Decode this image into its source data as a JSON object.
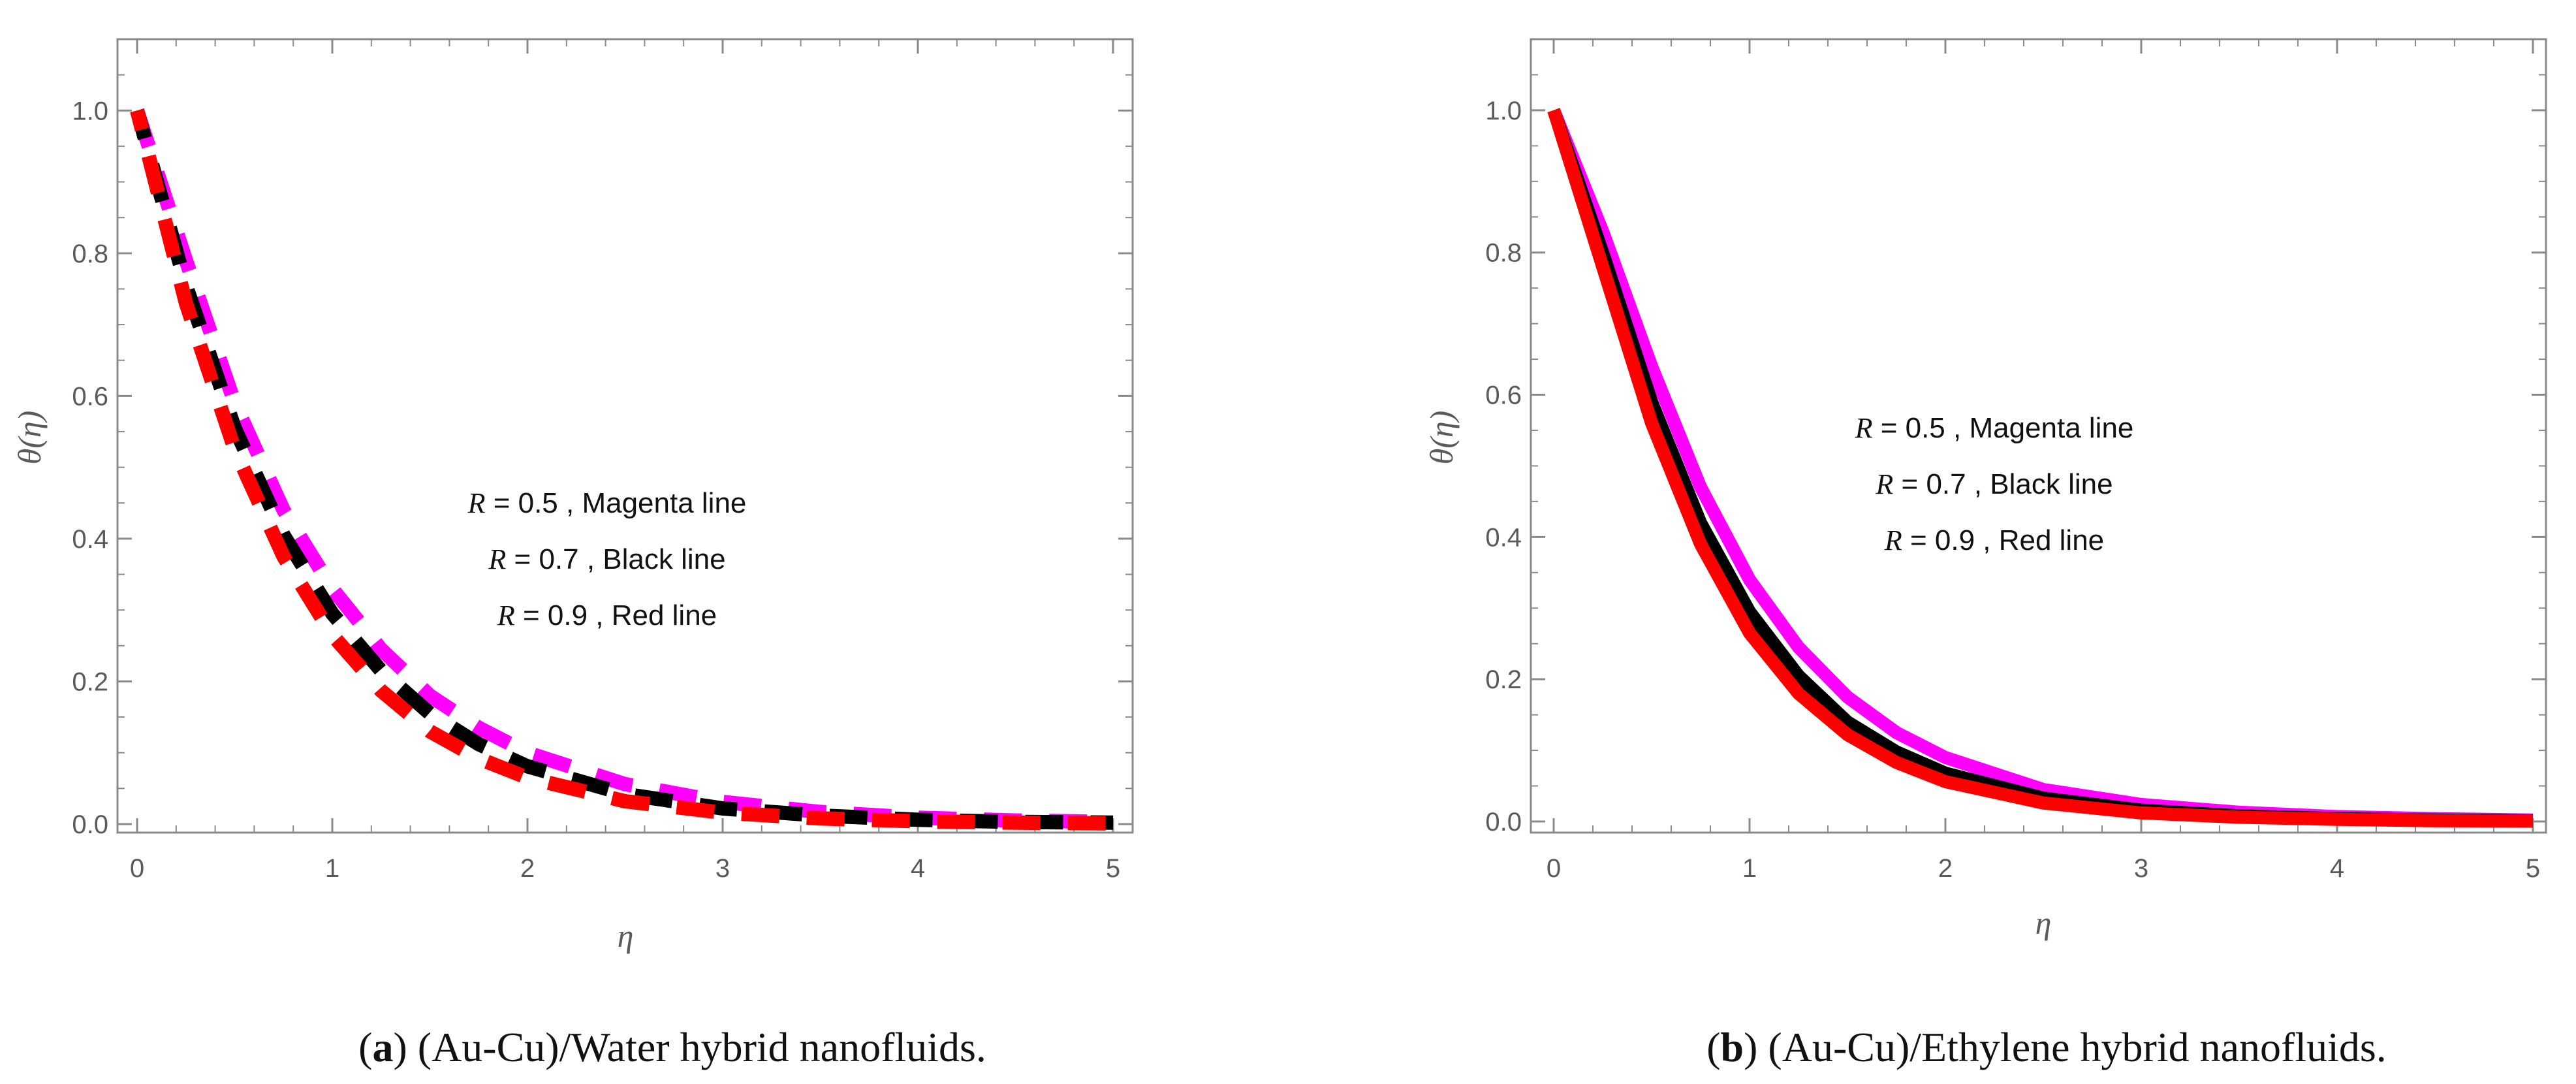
{
  "colors": {
    "magenta": "#ff00ff",
    "black": "#000000",
    "red": "#ff0000",
    "frame": "#8a8a8a"
  },
  "chart_data": [
    {
      "id": "a",
      "type": "line",
      "style": "dashed",
      "xlabel": "η",
      "ylabel": "θ(η)",
      "xlim": [
        0,
        5
      ],
      "ylim": [
        0,
        1.1
      ],
      "xticks": [
        0,
        1,
        2,
        3,
        4,
        5
      ],
      "yticks": [
        0.0,
        0.2,
        0.4,
        0.6,
        0.8,
        1.0
      ],
      "xtick_labels": [
        "0",
        "1",
        "2",
        "3",
        "4",
        "5"
      ],
      "ytick_labels": [
        "0.0",
        "0.2",
        "0.4",
        "0.6",
        "0.8",
        "1.0"
      ],
      "x": [
        0,
        0.25,
        0.5,
        0.75,
        1,
        1.25,
        1.5,
        1.75,
        2,
        2.5,
        3,
        3.5,
        4,
        4.5,
        5
      ],
      "series": [
        {
          "name": "R = 0.5",
          "color": "magenta",
          "values": [
            1.0,
            0.79,
            0.59,
            0.44,
            0.33,
            0.245,
            0.18,
            0.135,
            0.1,
            0.056,
            0.031,
            0.017,
            0.009,
            0.005,
            0.003
          ]
        },
        {
          "name": "R = 0.7",
          "color": "black",
          "values": [
            1.0,
            0.755,
            0.555,
            0.405,
            0.295,
            0.215,
            0.155,
            0.112,
            0.081,
            0.042,
            0.022,
            0.012,
            0.006,
            0.003,
            0.002
          ]
        },
        {
          "name": "R = 0.9",
          "color": "red",
          "values": [
            1.0,
            0.73,
            0.525,
            0.375,
            0.265,
            0.187,
            0.13,
            0.092,
            0.065,
            0.032,
            0.016,
            0.008,
            0.004,
            0.002,
            0.001
          ]
        }
      ],
      "annotations": [
        {
          "var": "R",
          "rest": " = 0.5 , Magenta   line"
        },
        {
          "var": "R",
          "rest": " = 0.7 , Black line"
        },
        {
          "var": "R",
          "rest": " = 0.9 , Red  line"
        }
      ],
      "caption_letter": "a",
      "caption_rest": ") (Au-Cu)/Water hybrid nanofluids."
    },
    {
      "id": "b",
      "type": "line",
      "style": "solid",
      "xlabel": "η",
      "ylabel": "θ(η)",
      "xlim": [
        0,
        5
      ],
      "ylim": [
        0,
        1.1
      ],
      "xticks": [
        0,
        1,
        2,
        3,
        4,
        5
      ],
      "yticks": [
        0.0,
        0.2,
        0.4,
        0.6,
        0.8,
        1.0
      ],
      "xtick_labels": [
        "0",
        "1",
        "2",
        "3",
        "4",
        "5"
      ],
      "ytick_labels": [
        "0.0",
        "0.2",
        "0.4",
        "0.6",
        "0.8",
        "1.0"
      ],
      "x": [
        0,
        0.25,
        0.5,
        0.75,
        1,
        1.25,
        1.5,
        1.75,
        2,
        2.5,
        3,
        3.5,
        4,
        4.5,
        5
      ],
      "series": [
        {
          "name": "R = 0.5",
          "color": "magenta",
          "values": [
            1.0,
            0.83,
            0.64,
            0.47,
            0.34,
            0.245,
            0.175,
            0.125,
            0.09,
            0.045,
            0.024,
            0.013,
            0.007,
            0.004,
            0.002
          ]
        },
        {
          "name": "R = 0.7",
          "color": "black",
          "values": [
            1.0,
            0.8,
            0.59,
            0.42,
            0.295,
            0.205,
            0.14,
            0.098,
            0.068,
            0.033,
            0.016,
            0.008,
            0.004,
            0.002,
            0.001
          ]
        },
        {
          "name": "R = 0.9",
          "color": "red",
          "values": [
            1.0,
            0.78,
            0.56,
            0.39,
            0.265,
            0.18,
            0.122,
            0.083,
            0.056,
            0.026,
            0.012,
            0.006,
            0.003,
            0.001,
            0.0005
          ]
        }
      ],
      "annotations": [
        {
          "var": "R",
          "rest": " = 0.5 , Magenta  line"
        },
        {
          "var": "R",
          "rest": " = 0.7 , Black line"
        },
        {
          "var": "R",
          "rest": " = 0.9 , Red  line"
        }
      ],
      "caption_letter": "b",
      "caption_rest": ") (Au-Cu)/Ethylene hybrid nanofluids."
    }
  ]
}
